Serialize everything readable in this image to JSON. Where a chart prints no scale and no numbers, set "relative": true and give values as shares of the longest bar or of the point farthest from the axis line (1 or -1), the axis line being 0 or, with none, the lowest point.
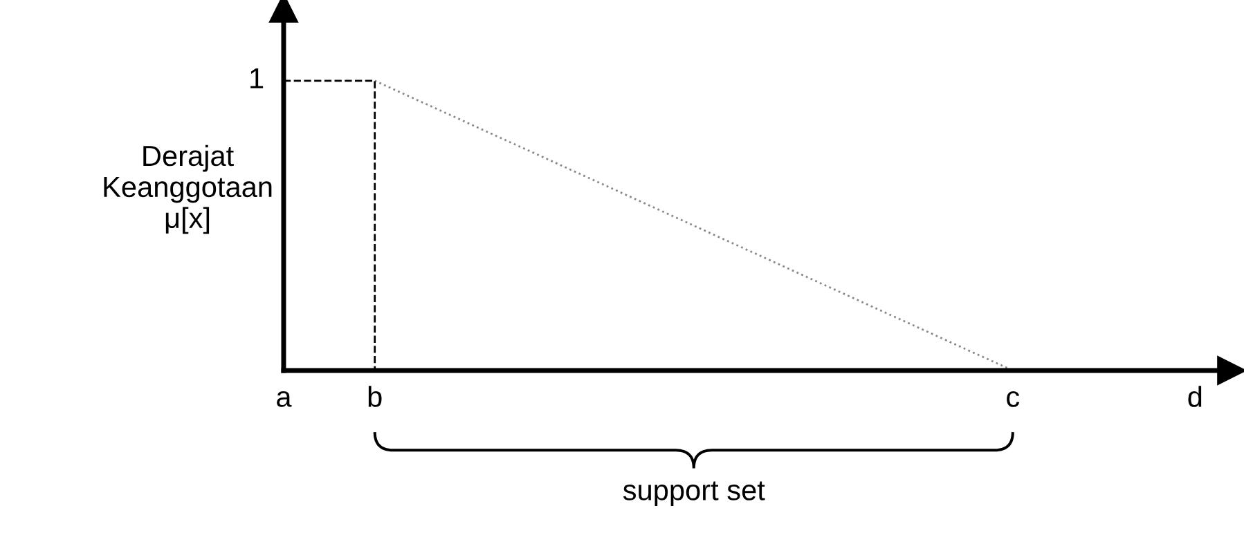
{
  "chart_data": {
    "type": "line",
    "relative": true,
    "ylabel": "Derajat\nKeanggotaan\nμ[x]",
    "annotations": [
      {
        "text": "1",
        "x": "a",
        "y": 1
      },
      "support set"
    ],
    "categories": [
      "a",
      "b",
      null,
      null,
      null,
      null,
      null,
      null,
      "c",
      null,
      "d"
    ],
    "grid": false,
    "legend": false,
    "marker": "none",
    "series": [
      {
        "x": [
          "b",
          "c"
        ],
        "values": [
          1,
          0
        ],
        "color": "#888888",
        "line_style": "dotted"
      },
      {
        "x": [
          "a",
          "b",
          "b"
        ],
        "values": [
          1,
          1,
          0
        ],
        "color": "#000000",
        "line_style": "dashed"
      }
    ]
  }
}
